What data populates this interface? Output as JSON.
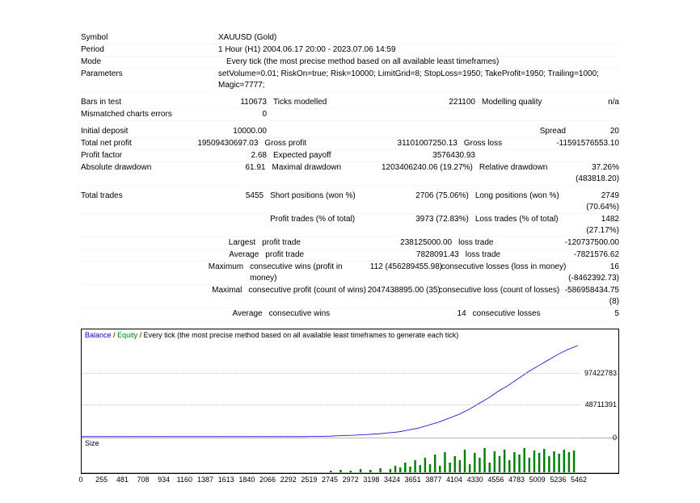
{
  "header": {
    "symbol_label": "Symbol",
    "symbol_value": "XAUUSD (Gold)",
    "period_label": "Period",
    "period_value": "1 Hour (H1) 2004.06.17 20:00 - 2023.07.06 14:59",
    "mode_label": "Mode",
    "mode_value": "Every tick (the most precise method based on all available least timeframes)",
    "params_label": "Parameters",
    "params_value": "setVolume=0.01; RiskOn=true; Risk=10000; LimitGrid=8; StopLoss=1950; TakeProfit=1950; Trailing=1000; Magic=7777;"
  },
  "bars": {
    "bars_label": "Bars in test",
    "bars_value": "110673",
    "ticks_label": "Ticks modelled",
    "ticks_value": "221100",
    "quality_label": "Modelling quality",
    "quality_value": "n/a",
    "mismatch_label": "Mismatched charts errors",
    "mismatch_value": "0"
  },
  "deposit": {
    "initial_label": "Initial deposit",
    "initial_value": "10000.00",
    "spread_label": "Spread",
    "spread_value": "20",
    "netprofit_label": "Total net profit",
    "netprofit_value": "19509430697.03",
    "grossprofit_label": "Gross profit",
    "grossprofit_value": "31101007250.13",
    "grossloss_label": "Gross loss",
    "grossloss_value": "-11591576553.10",
    "pf_label": "Profit factor",
    "pf_value": "2.68",
    "ep_label": "Expected payoff",
    "ep_value": "3576430.93",
    "absdd_label": "Absolute drawdown",
    "absdd_value": "61.91",
    "maxdd_label": "Maximal drawdown",
    "maxdd_value": "1203406240.06 (19.27%)",
    "reldd_label": "Relative drawdown",
    "reldd_value": "37.26% (483818.20)"
  },
  "trades": {
    "total_label": "Total trades",
    "total_value": "5455",
    "short_label": "Short positions (won %)",
    "short_value": "2706 (75.06%)",
    "long_label": "Long positions (won %)",
    "long_value": "2749 (70.64%)",
    "pt_label": "Profit trades (% of total)",
    "pt_value": "3973 (72.83%)",
    "lt_label": "Loss trades (% of total)",
    "lt_value": "1482 (27.17%)",
    "largest_label": "Largest",
    "largest_pt_label": "profit trade",
    "largest_pt_value": "238125000.00",
    "largest_lt_label": "loss trade",
    "largest_lt_value": "-120737500.00",
    "average_label": "Average",
    "avg_pt_label": "profit trade",
    "avg_pt_value": "7828091.43",
    "avg_lt_label": "loss trade",
    "avg_lt_value": "-7821576.62",
    "maximum_label": "Maximum",
    "max_cw_label": "consecutive wins (profit in money)",
    "max_cw_value": "112 (456289455.98)",
    "max_cl_label": "consecutive losses (loss in money)",
    "max_cl_value": "16 (-8462392.73)",
    "maximal_label": "Maximal",
    "max_cp_label": "consecutive profit (count of wins)",
    "max_cp_value": "2047438895.00 (35)",
    "max_closs_label": "consecutive loss (count of losses)",
    "max_closs_value": "-586958434.75 (8)",
    "avg2_label": "Average",
    "avg_cw_label": "consecutive wins",
    "avg_cw_value": "14",
    "avg_cl_label": "consecutive losses",
    "avg_cl_value": "5"
  },
  "chart": {
    "legend_balance": "Balance",
    "legend_equity": "Equity",
    "legend_rest": " / Every tick (the most precise method based on all available least timeframes to generate each tick)",
    "size_label": "Size",
    "yticks": [
      "97422783",
      "48711391",
      "0"
    ],
    "ytick_positions": [
      33,
      66,
      100
    ],
    "xticks": [
      "0",
      "255",
      "481",
      "708",
      "934",
      "1160",
      "1387",
      "1613",
      "1840",
      "2066",
      "2292",
      "2519",
      "2745",
      "2972",
      "3198",
      "3424",
      "3651",
      "3877",
      "4104",
      "4330",
      "4556",
      "4783",
      "5009",
      "5236",
      "5462"
    ],
    "balance_color": "#0000cc",
    "equity_color": "#008000",
    "grid_color": "#cccccc",
    "curve_points": [
      [
        0,
        99
      ],
      [
        5,
        99
      ],
      [
        10,
        99
      ],
      [
        15,
        99
      ],
      [
        20,
        99
      ],
      [
        25,
        99
      ],
      [
        30,
        99
      ],
      [
        35,
        99
      ],
      [
        40,
        99
      ],
      [
        45,
        99
      ],
      [
        50,
        98.5
      ],
      [
        52,
        98
      ],
      [
        55,
        97.5
      ],
      [
        57,
        97
      ],
      [
        60,
        96
      ],
      [
        62,
        95
      ],
      [
        64,
        94
      ],
      [
        66,
        92
      ],
      [
        68,
        90
      ],
      [
        70,
        87
      ],
      [
        72,
        84
      ],
      [
        74,
        80
      ],
      [
        76,
        76
      ],
      [
        78,
        71
      ],
      [
        80,
        65
      ],
      [
        82,
        59
      ],
      [
        84,
        52
      ],
      [
        86,
        46
      ],
      [
        88,
        39
      ],
      [
        90,
        32
      ],
      [
        92,
        26
      ],
      [
        94,
        20
      ],
      [
        96,
        14
      ],
      [
        98,
        9
      ],
      [
        100,
        5
      ]
    ],
    "size_bars": [
      [
        50,
        2
      ],
      [
        52,
        3
      ],
      [
        54,
        2
      ],
      [
        56,
        4
      ],
      [
        58,
        3
      ],
      [
        60,
        5
      ],
      [
        62,
        4
      ],
      [
        63,
        8
      ],
      [
        64,
        6
      ],
      [
        65,
        12
      ],
      [
        66,
        7
      ],
      [
        67,
        15
      ],
      [
        68,
        9
      ],
      [
        69,
        18
      ],
      [
        70,
        10
      ],
      [
        71,
        22
      ],
      [
        72,
        8
      ],
      [
        73,
        25
      ],
      [
        74,
        12
      ],
      [
        75,
        20
      ],
      [
        76,
        15
      ],
      [
        77,
        28
      ],
      [
        78,
        10
      ],
      [
        79,
        24
      ],
      [
        80,
        18
      ],
      [
        81,
        30
      ],
      [
        82,
        12
      ],
      [
        83,
        26
      ],
      [
        84,
        20
      ],
      [
        85,
        28
      ],
      [
        86,
        15
      ],
      [
        87,
        25
      ],
      [
        88,
        22
      ],
      [
        89,
        30
      ],
      [
        90,
        18
      ],
      [
        91,
        27
      ],
      [
        92,
        24
      ],
      [
        93,
        29
      ],
      [
        94,
        20
      ],
      [
        95,
        26
      ],
      [
        96,
        23
      ],
      [
        97,
        28
      ],
      [
        98,
        25
      ],
      [
        99,
        27
      ],
      [
        100,
        24
      ]
    ]
  }
}
